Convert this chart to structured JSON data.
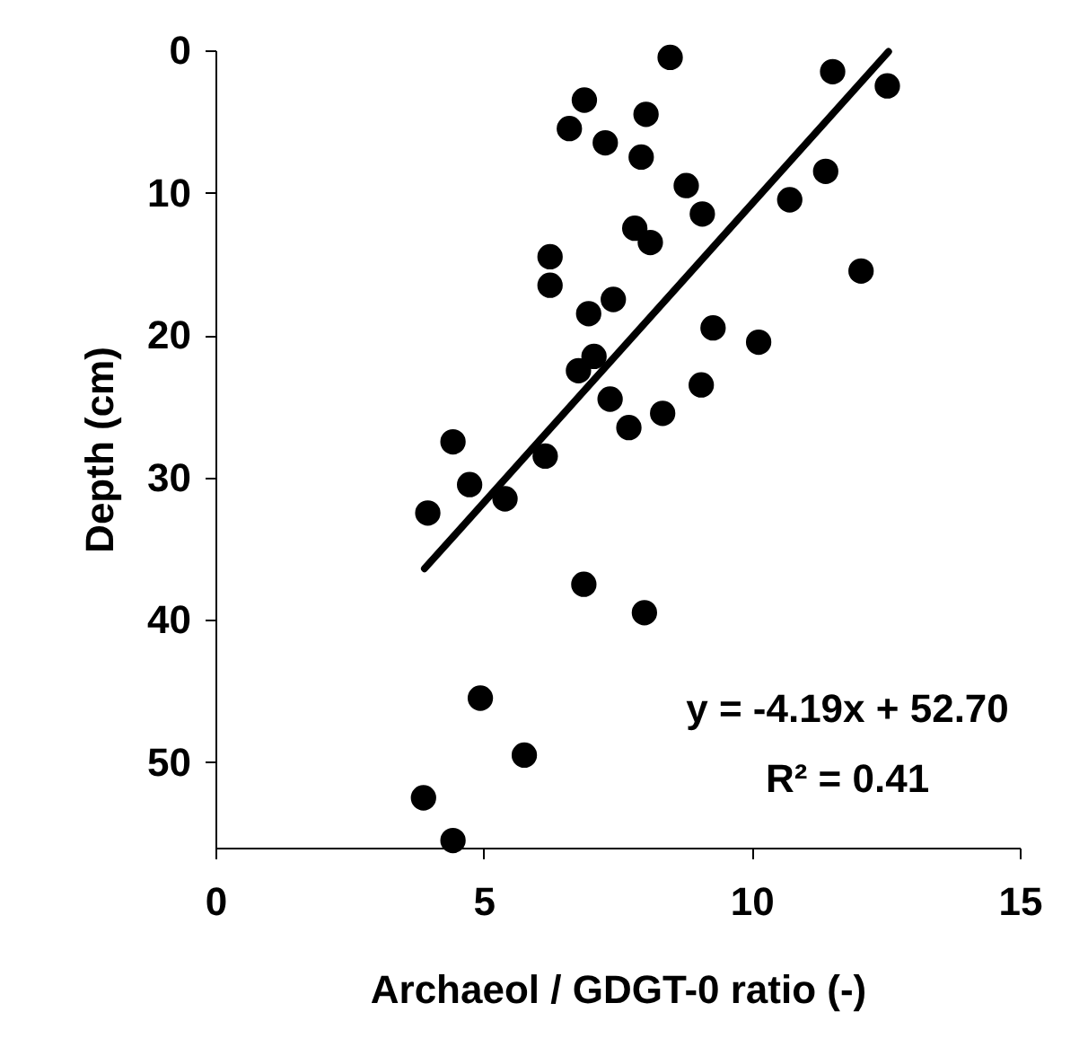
{
  "chart_data": {
    "type": "scatter",
    "xlabel": "Archaeol / GDGT-0 ratio (-)",
    "ylabel": "Depth (cm)",
    "xlim": [
      0,
      15
    ],
    "xticks": [
      0,
      5,
      10,
      15
    ],
    "ylim": [
      56,
      0
    ],
    "yticks": [
      0,
      10,
      20,
      30,
      40,
      50
    ],
    "grid": false,
    "series": [
      {
        "type": "scatter",
        "marker": "circle",
        "color": "#000000",
        "x": [
          8.48,
          11.51,
          12.53,
          6.88,
          8.03,
          6.6,
          7.27,
          7.94,
          11.38,
          8.78,
          10.71,
          9.08,
          7.82,
          8.11,
          6.24,
          12.04,
          6.24,
          7.42,
          6.96,
          9.28,
          10.13,
          7.06,
          6.77,
          9.06,
          7.36,
          8.34,
          7.71,
          4.43,
          6.15,
          4.74,
          5.4,
          3.96,
          6.87,
          8.0,
          4.94,
          5.76,
          3.88,
          4.43
        ],
        "values": [
          0.5,
          1.5,
          2.5,
          3.5,
          4.5,
          5.5,
          6.5,
          7.5,
          8.5,
          9.5,
          10.5,
          11.5,
          12.5,
          13.5,
          14.5,
          15.5,
          16.5,
          17.5,
          18.5,
          19.5,
          20.5,
          21.5,
          22.5,
          23.5,
          24.5,
          25.5,
          26.5,
          27.5,
          28.5,
          30.5,
          31.5,
          32.5,
          37.5,
          39.5,
          45.5,
          49.5,
          52.5,
          55.5
        ]
      },
      {
        "type": "line",
        "marker": "none",
        "line_style": "solid",
        "color": "#000000",
        "x": [
          3.9,
          12.55
        ],
        "values": [
          36.4,
          0.1
        ]
      }
    ],
    "annotations": [
      "y = -4.19x + 52.70",
      "R² = 0.41"
    ]
  }
}
